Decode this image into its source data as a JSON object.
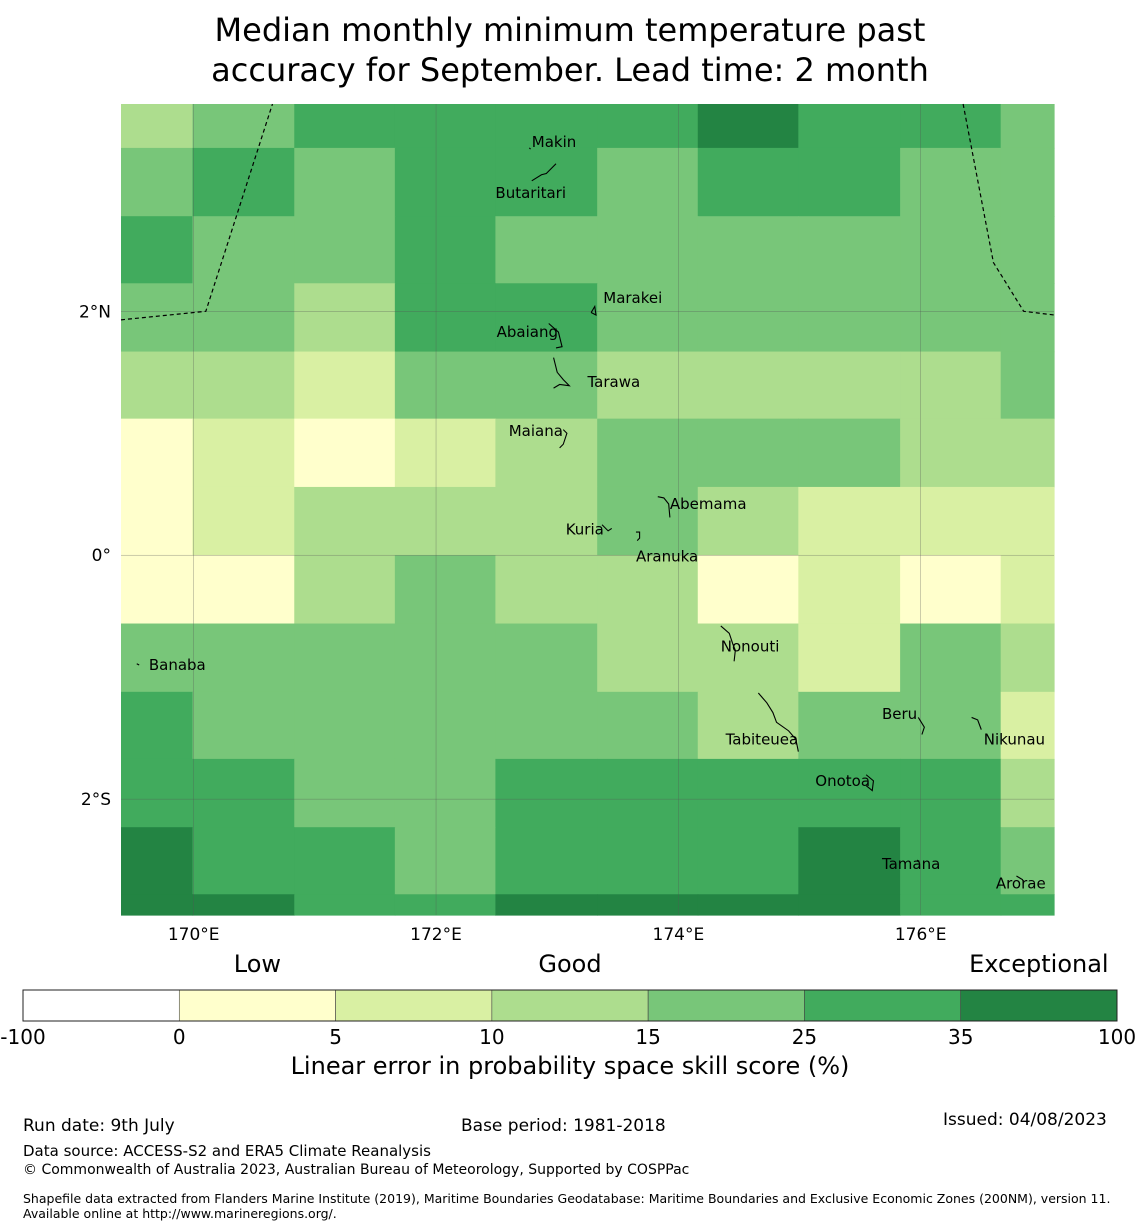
{
  "title": {
    "line1": "Median monthly minimum temperature past",
    "line2": "accuracy for September. Lead time: 2 month"
  },
  "map": {
    "lon_range": [
      169.4,
      177.1
    ],
    "lat_range": [
      -2.95,
      3.7
    ],
    "lon_ticks": [
      {
        "value": 170,
        "label": "170°E"
      },
      {
        "value": 172,
        "label": "172°E"
      },
      {
        "value": 174,
        "label": "174°E"
      },
      {
        "value": 176,
        "label": "176°E"
      }
    ],
    "lat_ticks": [
      {
        "value": 2,
        "label": "2°N"
      },
      {
        "value": 0,
        "label": "0°"
      },
      {
        "value": -2,
        "label": "2°S"
      }
    ],
    "grid_lines": true,
    "palette": [
      "#ffffff",
      "#ffffcc",
      "#d9f0a3",
      "#addd8e",
      "#78c679",
      "#41ab5d",
      "#238443"
    ],
    "cell_lon_edges": [
      169.4,
      169.99,
      170.83,
      171.66,
      172.49,
      173.33,
      174.16,
      174.99,
      175.83,
      176.66,
      177.1
    ],
    "cell_lat_edges": [
      3.7,
      3.34,
      2.78,
      2.23,
      1.67,
      1.12,
      0.56,
      0.0,
      -0.56,
      -1.12,
      -1.67,
      -2.23,
      -2.78,
      -2.95
    ],
    "skill_classes": [
      [
        3,
        4,
        5,
        5,
        5,
        5,
        6,
        5,
        5,
        4
      ],
      [
        4,
        5,
        4,
        5,
        5,
        4,
        5,
        5,
        4,
        4
      ],
      [
        5,
        4,
        4,
        5,
        4,
        4,
        4,
        4,
        4,
        4
      ],
      [
        4,
        4,
        3,
        5,
        5,
        4,
        4,
        4,
        4,
        4
      ],
      [
        3,
        3,
        2,
        4,
        4,
        3,
        3,
        3,
        3,
        4
      ],
      [
        1,
        2,
        1,
        2,
        3,
        4,
        4,
        4,
        3,
        3
      ],
      [
        1,
        2,
        3,
        3,
        3,
        4,
        3,
        2,
        2,
        2
      ],
      [
        1,
        1,
        3,
        4,
        3,
        3,
        1,
        2,
        1,
        2
      ],
      [
        4,
        4,
        4,
        4,
        4,
        3,
        3,
        2,
        4,
        3
      ],
      [
        5,
        4,
        4,
        4,
        4,
        4,
        3,
        4,
        4,
        2
      ],
      [
        5,
        5,
        4,
        4,
        5,
        5,
        5,
        5,
        5,
        3
      ],
      [
        6,
        5,
        5,
        4,
        5,
        5,
        5,
        6,
        5,
        4
      ],
      [
        6,
        6,
        5,
        5,
        6,
        6,
        6,
        6,
        5,
        5
      ]
    ],
    "boundaries": [
      [
        [
          169.4,
          1.93
        ],
        [
          170.1,
          2.0
        ],
        [
          170.65,
          3.7
        ]
      ],
      [
        [
          176.35,
          3.7
        ],
        [
          176.6,
          2.4
        ],
        [
          176.85,
          2.0
        ],
        [
          177.1,
          1.97
        ]
      ]
    ],
    "islands": [
      {
        "name": "Makin",
        "lon": 172.99,
        "lat": 3.39,
        "label_dlon": -0.2,
        "label_dlat": 0.0,
        "shape": [
          [
            -0.22,
            -0.05
          ],
          [
            -0.21,
            -0.06
          ]
        ]
      },
      {
        "name": "Butaritari",
        "lon": 172.79,
        "lat": 3.07,
        "label_dlon": -0.3,
        "label_dlat": -0.1,
        "shape": [
          [
            0,
            0
          ],
          [
            0.08,
            0.05
          ],
          [
            0.12,
            0.06
          ],
          [
            0.2,
            0.14
          ]
        ]
      },
      {
        "name": "Marakei",
        "lon": 173.28,
        "lat": 1.99,
        "label_dlon": 0.1,
        "label_dlat": 0.12,
        "shape": [
          [
            0,
            0
          ],
          [
            0.03,
            0.05
          ],
          [
            0.04,
            -0.02
          ],
          [
            0,
            0
          ]
        ]
      },
      {
        "name": "Abaiang",
        "lon": 172.93,
        "lat": 1.9,
        "label_dlon": -0.43,
        "label_dlat": -0.07,
        "shape": [
          [
            0,
            0
          ],
          [
            0.08,
            -0.07
          ],
          [
            0.11,
            -0.19
          ],
          [
            0.06,
            -0.2
          ]
        ]
      },
      {
        "name": "Tarawa",
        "lon": 172.97,
        "lat": 1.62,
        "label_dlon": 0.28,
        "label_dlat": -0.2,
        "shape": [
          [
            0,
            0
          ],
          [
            0.03,
            -0.12
          ],
          [
            0.08,
            -0.18
          ],
          [
            0.13,
            -0.23
          ],
          [
            0.05,
            -0.22
          ],
          [
            0.0,
            -0.25
          ]
        ]
      },
      {
        "name": "Maiana",
        "lon": 173.05,
        "lat": 1.03,
        "label_dlon": -0.45,
        "label_dlat": -0.01,
        "shape": [
          [
            0,
            0
          ],
          [
            0.03,
            -0.03
          ],
          [
            0.0,
            -0.12
          ],
          [
            -0.03,
            -0.15
          ]
        ]
      },
      {
        "name": "Abemama",
        "lon": 173.83,
        "lat": 0.48,
        "label_dlon": 0.1,
        "label_dlat": -0.06,
        "shape": [
          [
            0,
            0
          ],
          [
            0.05,
            -0.01
          ],
          [
            0.09,
            -0.06
          ],
          [
            0.1,
            -0.17
          ]
        ]
      },
      {
        "name": "Kuria",
        "lon": 173.42,
        "lat": 0.25,
        "label_dlon": -0.35,
        "label_dlat": -0.04,
        "shape": [
          [
            -0.05,
            0.0
          ],
          [
            0.0,
            -0.05
          ],
          [
            0.03,
            -0.03
          ]
        ]
      },
      {
        "name": "Aranuka",
        "lon": 173.6,
        "lat": 0.19,
        "label_dlon": 0.05,
        "label_dlat": -0.2,
        "shape": [
          [
            0.05,
            0.0
          ],
          [
            0.08,
            0.0
          ],
          [
            0.08,
            -0.05
          ],
          [
            0.06,
            -0.07
          ]
        ]
      },
      {
        "name": "Nonouti",
        "lon": 174.35,
        "lat": -0.58,
        "label_dlon": 0.0,
        "label_dlat": -0.17,
        "shape": [
          [
            0,
            0
          ],
          [
            0.07,
            -0.06
          ],
          [
            0.1,
            -0.15
          ],
          [
            0.12,
            -0.2
          ],
          [
            0.11,
            -0.29
          ]
        ]
      },
      {
        "name": "Banaba",
        "lon": 169.53,
        "lat": -0.87,
        "label_dlon": 0.1,
        "label_dlat": -0.03,
        "shape": [
          [
            0,
            -0.02
          ],
          [
            0.02,
            -0.03
          ]
        ]
      },
      {
        "name": "Tabiteuea",
        "lon": 174.66,
        "lat": -1.13,
        "label_dlon": -0.27,
        "label_dlat": -0.38,
        "shape": [
          [
            0,
            0
          ],
          [
            0.07,
            -0.08
          ],
          [
            0.12,
            -0.16
          ],
          [
            0.15,
            -0.24
          ],
          [
            0.25,
            -0.31
          ],
          [
            0.31,
            -0.38
          ],
          [
            0.33,
            -0.48
          ]
        ]
      },
      {
        "name": "Beru",
        "lon": 175.98,
        "lat": -1.33,
        "label_dlon": -0.3,
        "label_dlat": 0.03,
        "shape": [
          [
            0,
            0
          ],
          [
            0.05,
            -0.08
          ],
          [
            0.03,
            -0.14
          ]
        ]
      },
      {
        "name": "Nikunau",
        "lon": 176.42,
        "lat": -1.33,
        "label_dlon": 0.1,
        "label_dlat": -0.18,
        "shape": [
          [
            0,
            0
          ],
          [
            0.05,
            -0.02
          ],
          [
            0.08,
            -0.1
          ]
        ]
      },
      {
        "name": "Onotoa",
        "lon": 175.55,
        "lat": -1.8,
        "label_dlon": -0.42,
        "label_dlat": -0.05,
        "shape": [
          [
            0,
            0
          ],
          [
            0.06,
            -0.05
          ],
          [
            0.05,
            -0.13
          ],
          [
            0.0,
            -0.09
          ]
        ]
      },
      {
        "name": "Tamana",
        "lon": 175.98,
        "lat": -2.5,
        "label_dlon": -0.3,
        "label_dlat": -0.03,
        "shape": [
          [
            -0.01,
            0.0
          ],
          [
            0.01,
            -0.01
          ]
        ]
      },
      {
        "name": "Arorae",
        "lon": 176.82,
        "lat": -2.63,
        "label_dlon": -0.2,
        "label_dlat": -0.06,
        "shape": [
          [
            -0.03,
            0.0
          ],
          [
            0.02,
            -0.03
          ],
          [
            0.03,
            -0.06
          ]
        ]
      }
    ]
  },
  "colorbar": {
    "category_labels": [
      {
        "text": "Low",
        "at": 0
      },
      {
        "text": "Good",
        "at": 10
      },
      {
        "text": "Exceptional",
        "at": 35
      }
    ],
    "boundaries": [
      "-100",
      "0",
      "5",
      "10",
      "15",
      "25",
      "35",
      "100"
    ],
    "colors": [
      "#ffffff",
      "#ffffcc",
      "#d9f0a3",
      "#addd8e",
      "#78c679",
      "#41ab5d",
      "#238443"
    ],
    "label": "Linear error in probability space skill score (%)"
  },
  "footer": {
    "run_date": "Run date: 9th July",
    "base_period": "Base period: 1981-2018",
    "issued": "Issued: 04/08/2023",
    "data_source": "Data source: ACCESS-S2 and ERA5 Climate Reanalysis",
    "copyright": "© Commonwealth of Australia 2023, Australian Bureau of Meteorology, Supported by COSPPac",
    "shapefile": "Shapefile data extracted from Flanders Marine Institute (2019), Maritime Boundaries Geodatabase: Maritime Boundaries and Exclusive Economic Zones (200NM), version 11. Available online at http://www.marineregions.org/."
  }
}
